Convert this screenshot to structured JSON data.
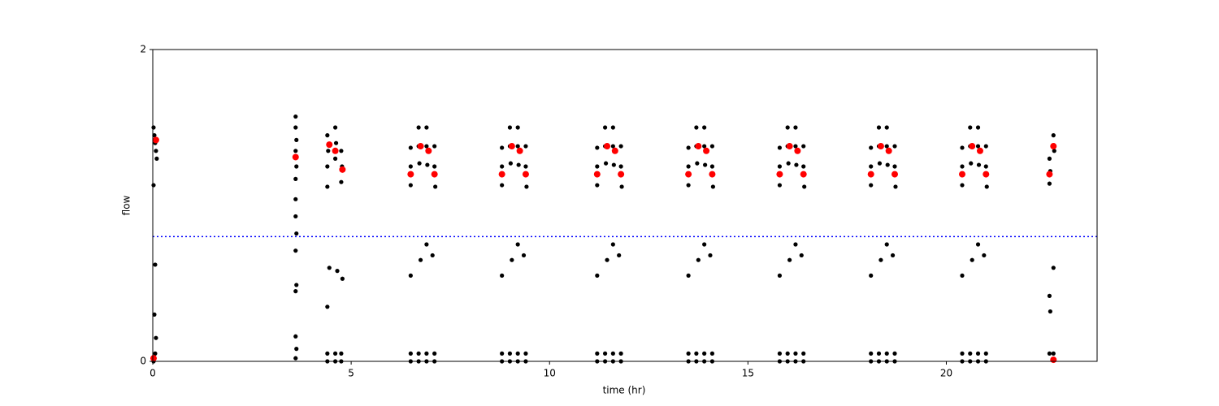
{
  "chart_data": {
    "type": "scatter",
    "x_label": "time (hr)",
    "y_label": "flow",
    "xlim": [
      0,
      23.8
    ],
    "ylim": [
      0,
      2
    ],
    "xticks": [
      0,
      5,
      10,
      15,
      20
    ],
    "yticks": [
      0,
      2
    ],
    "threshold": 0.8,
    "threshold_color": "#0000ff",
    "series": [
      {
        "color": "#000000",
        "size": 2.6,
        "x": [
          0.02,
          0.04,
          0.06,
          0.08,
          0.1,
          0.02,
          0.06,
          0.04,
          0.08,
          0.06,
          0.02,
          3.6,
          3.6,
          3.62,
          3.6,
          3.62,
          3.6,
          3.6,
          3.6,
          3.62,
          3.6,
          3.62,
          3.6,
          3.6,
          3.62,
          3.6,
          4.4,
          4.42,
          4.4,
          4.4,
          4.6,
          4.62,
          4.6,
          4.75,
          4.77,
          4.75,
          4.4,
          4.45,
          4.65,
          4.78,
          4.4,
          4.6,
          4.75,
          4.4,
          4.6,
          4.75,
          6.5,
          6.5,
          6.5,
          6.7,
          6.7,
          6.72,
          6.9,
          6.9,
          6.92,
          7.1,
          7.1,
          7.12,
          6.5,
          6.75,
          6.9,
          7.05,
          6.5,
          6.7,
          6.9,
          7.1,
          6.5,
          6.7,
          6.9,
          7.1,
          8.8,
          8.8,
          8.8,
          9,
          9,
          9.02,
          9.2,
          9.2,
          9.22,
          9.4,
          9.4,
          9.42,
          8.8,
          9.05,
          9.2,
          9.35,
          8.8,
          9,
          9.2,
          9.4,
          8.8,
          9,
          9.2,
          9.4,
          11.2,
          11.2,
          11.2,
          11.4,
          11.4,
          11.42,
          11.6,
          11.6,
          11.62,
          11.8,
          11.8,
          11.82,
          11.2,
          11.45,
          11.6,
          11.75,
          11.2,
          11.4,
          11.6,
          11.8,
          11.2,
          11.4,
          11.6,
          11.8,
          13.5,
          13.5,
          13.5,
          13.7,
          13.7,
          13.72,
          13.9,
          13.9,
          13.92,
          14.1,
          14.1,
          14.12,
          13.5,
          13.75,
          13.9,
          14.05,
          13.5,
          13.7,
          13.9,
          14.1,
          13.5,
          13.7,
          13.9,
          14.1,
          15.8,
          15.8,
          15.8,
          16,
          16,
          16.02,
          16.2,
          16.2,
          16.22,
          16.4,
          16.4,
          16.42,
          15.8,
          16.05,
          16.2,
          16.35,
          15.8,
          16,
          16.2,
          16.4,
          15.8,
          16,
          16.2,
          16.4,
          18.1,
          18.1,
          18.1,
          18.3,
          18.3,
          18.32,
          18.5,
          18.5,
          18.52,
          18.7,
          18.7,
          18.72,
          18.1,
          18.35,
          18.5,
          18.65,
          18.1,
          18.3,
          18.5,
          18.7,
          18.1,
          18.3,
          18.5,
          18.7,
          20.4,
          20.4,
          20.4,
          20.6,
          20.6,
          20.62,
          20.8,
          20.8,
          20.82,
          21,
          21,
          21.02,
          20.4,
          20.65,
          20.8,
          20.95,
          20.4,
          20.6,
          20.8,
          21,
          20.4,
          20.6,
          20.8,
          21,
          22.6,
          22.62,
          22.6,
          22.7,
          22.72,
          22.6,
          22.62,
          22.7,
          22.6,
          22.7
        ],
        "values": [
          1.5,
          1.45,
          1.4,
          1.35,
          1.3,
          1.13,
          0.62,
          0.3,
          0.15,
          0.05,
          0,
          1.57,
          1.5,
          1.42,
          1.35,
          1.25,
          1.17,
          1.04,
          0.93,
          0.82,
          0.71,
          0.49,
          0.45,
          0.16,
          0.08,
          0.02,
          1.45,
          1.35,
          1.25,
          1.12,
          1.5,
          1.4,
          1.3,
          1.35,
          1.25,
          1.15,
          0.35,
          0.6,
          0.58,
          0.53,
          0.05,
          0.05,
          0.05,
          0,
          0,
          0,
          1.37,
          1.25,
          1.13,
          1.5,
          1.38,
          1.27,
          1.5,
          1.38,
          1.26,
          1.38,
          1.25,
          1.12,
          0.55,
          0.65,
          0.75,
          0.68,
          0.05,
          0.05,
          0.05,
          0.05,
          0,
          0,
          0,
          0,
          1.37,
          1.25,
          1.13,
          1.5,
          1.38,
          1.27,
          1.5,
          1.38,
          1.26,
          1.38,
          1.25,
          1.12,
          0.55,
          0.65,
          0.75,
          0.68,
          0.05,
          0.05,
          0.05,
          0.05,
          0,
          0,
          0,
          0,
          1.37,
          1.25,
          1.13,
          1.5,
          1.38,
          1.27,
          1.5,
          1.38,
          1.26,
          1.38,
          1.25,
          1.12,
          0.55,
          0.65,
          0.75,
          0.68,
          0.05,
          0.05,
          0.05,
          0.05,
          0,
          0,
          0,
          0,
          1.37,
          1.25,
          1.13,
          1.5,
          1.38,
          1.27,
          1.5,
          1.38,
          1.26,
          1.38,
          1.25,
          1.12,
          0.55,
          0.65,
          0.75,
          0.68,
          0.05,
          0.05,
          0.05,
          0.05,
          0,
          0,
          0,
          0,
          1.37,
          1.25,
          1.13,
          1.5,
          1.38,
          1.27,
          1.5,
          1.38,
          1.26,
          1.38,
          1.25,
          1.12,
          0.55,
          0.65,
          0.75,
          0.68,
          0.05,
          0.05,
          0.05,
          0.05,
          0,
          0,
          0,
          0,
          1.37,
          1.25,
          1.13,
          1.5,
          1.38,
          1.27,
          1.5,
          1.38,
          1.26,
          1.38,
          1.25,
          1.12,
          0.55,
          0.65,
          0.75,
          0.68,
          0.05,
          0.05,
          0.05,
          0.05,
          0,
          0,
          0,
          0,
          1.37,
          1.25,
          1.13,
          1.5,
          1.38,
          1.27,
          1.5,
          1.38,
          1.26,
          1.38,
          1.25,
          1.12,
          0.55,
          0.65,
          0.75,
          0.68,
          0.05,
          0.05,
          0.05,
          0.05,
          0,
          0,
          0,
          0,
          1.3,
          1.22,
          1.14,
          1.45,
          1.35,
          0.42,
          0.32,
          0.6,
          0.05,
          0.05
        ]
      },
      {
        "color": "#ff0000",
        "size": 4,
        "x": [
          0.08,
          0.02,
          3.6,
          4.45,
          4.6,
          4.78,
          6.5,
          6.75,
          6.95,
          7.1,
          8.8,
          9.05,
          9.25,
          9.4,
          11.2,
          11.45,
          11.65,
          11.8,
          13.5,
          13.75,
          13.95,
          14.1,
          15.8,
          16.05,
          16.25,
          16.4,
          18.1,
          18.35,
          18.55,
          18.7,
          20.4,
          20.65,
          20.85,
          21,
          22.6,
          22.7,
          22.7
        ],
        "values": [
          1.42,
          0.02,
          1.31,
          1.39,
          1.35,
          1.23,
          1.2,
          1.38,
          1.35,
          1.2,
          1.2,
          1.38,
          1.35,
          1.2,
          1.2,
          1.38,
          1.35,
          1.2,
          1.2,
          1.38,
          1.35,
          1.2,
          1.2,
          1.38,
          1.35,
          1.2,
          1.2,
          1.38,
          1.35,
          1.2,
          1.2,
          1.38,
          1.35,
          1.2,
          1.2,
          1.38,
          0.01
        ]
      }
    ]
  }
}
